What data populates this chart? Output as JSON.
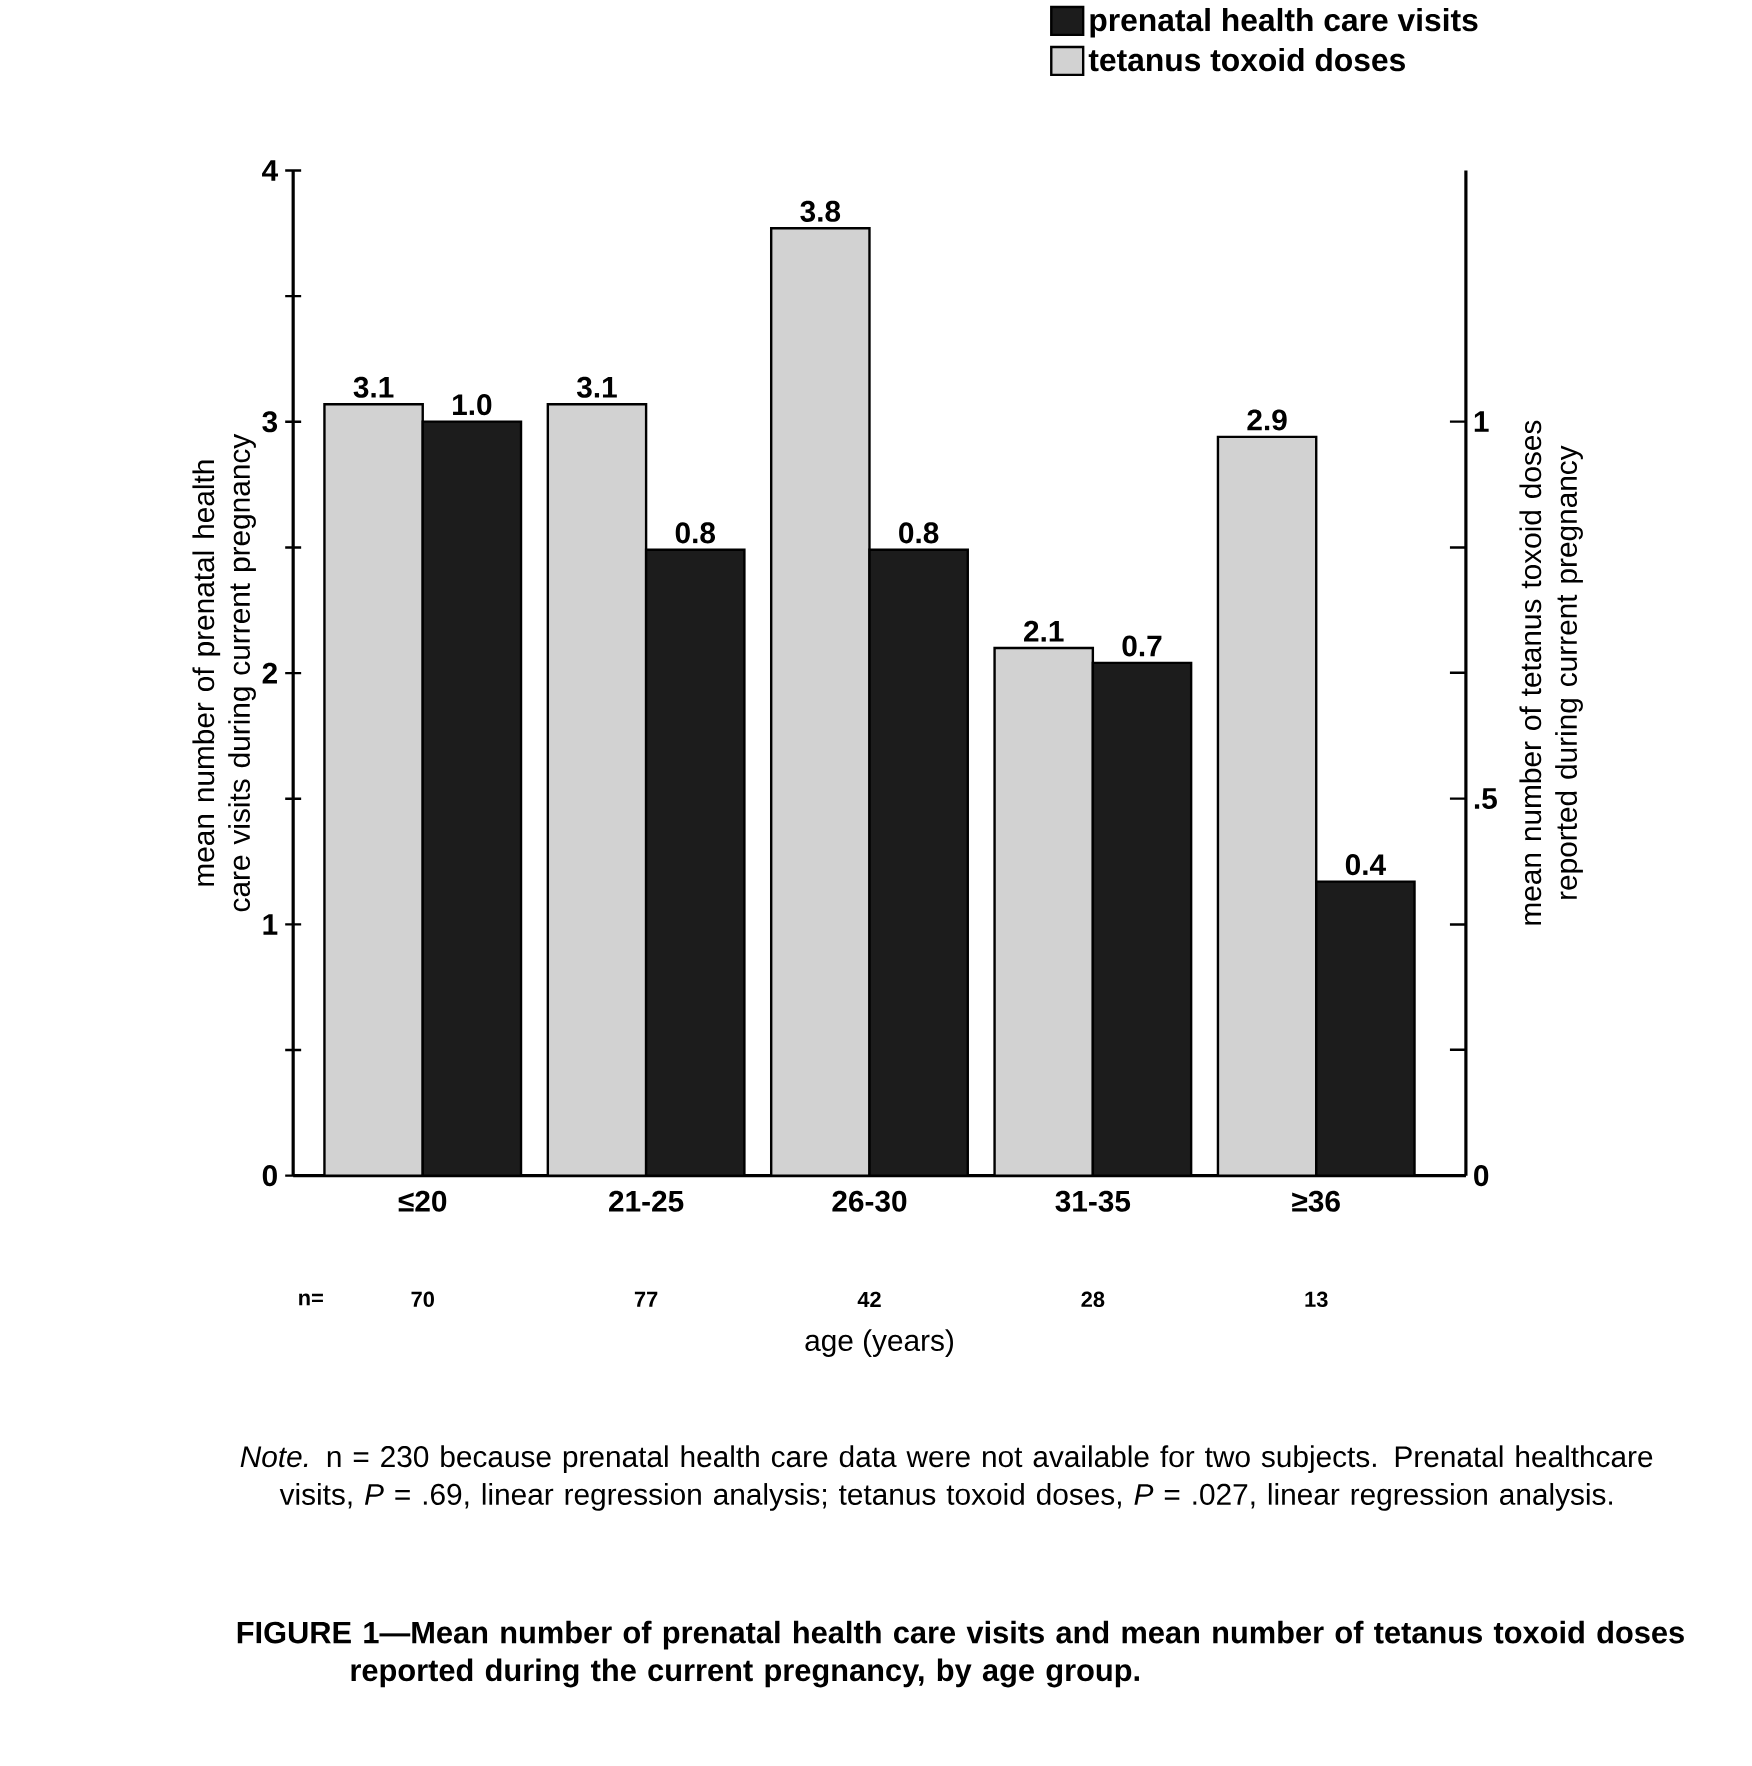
{
  "chart_data": {
    "type": "bar",
    "title": "FIGURE 1—Mean number of prenatal health care visits and mean number of tetanus toxoid doses reported during the current pregnancy, by age group.",
    "xlabel": "age (years)",
    "ylabel": "mean number of prenatal health care visits during current pregnancy",
    "y2label": "mean number of tetanus toxoid doses reported during current pregnancy",
    "categories": [
      "≤20",
      "21-25",
      "26-30",
      "31-35",
      "≥36"
    ],
    "series": [
      {
        "name": "tetanus toxoid doses",
        "color": "#d2d2d2",
        "axis": "y",
        "values": [
          3.07,
          3.07,
          3.77,
          2.1,
          2.94
        ],
        "value_labels": [
          "3.1",
          "3.1",
          "3.8",
          "2.1",
          "2.9"
        ]
      },
      {
        "name": "prenatal health care visits",
        "color": "#1c1c1c",
        "axis": "y2",
        "values": [
          1.0,
          0.83,
          0.83,
          0.68,
          0.39
        ],
        "value_labels": [
          "1.0",
          "0.8",
          "0.8",
          "0.7",
          "0.4"
        ]
      }
    ],
    "ylim": [
      0,
      4
    ],
    "yticks": [
      0,
      {
        "value": 0.5,
        "label": null
      },
      1,
      {
        "value": 1.5,
        "label": null
      },
      2,
      {
        "value": 2.5,
        "label": null
      },
      3,
      {
        "value": 3.5,
        "label": null
      },
      4
    ],
    "y2lim": [
      0,
      1.333
    ],
    "y2ticks": [
      0,
      {
        "value": 0.167,
        "label": null
      },
      {
        "value": 0.333,
        "label": null
      },
      {
        "value": 0.5,
        "label": ".5"
      },
      {
        "value": 0.667,
        "label": null
      },
      {
        "value": 0.833,
        "label": null
      },
      1
    ],
    "legend": "top right",
    "grid": false,
    "annotations": [
      "n=",
      "70",
      "77",
      "42",
      "28",
      "13",
      "*Note.* n = 230 because prenatal health care data were not available for two subjects. Prenatal healthcare visits, *P* = .69, linear regression analysis; tetanus toxoid doses, *P* = .027, linear regression analysis."
    ]
  }
}
